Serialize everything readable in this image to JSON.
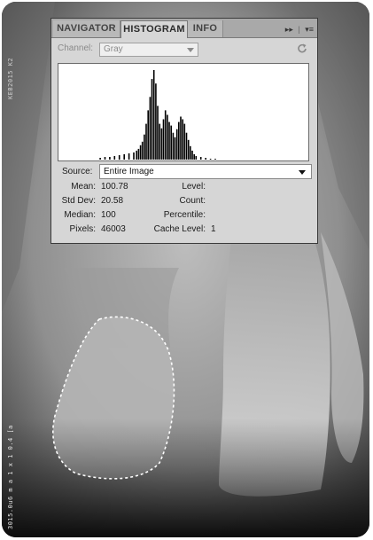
{
  "side_text": {
    "top": "KEB2015 K2",
    "bottom": "3015.0u6 m a 1 x 1 0.4 [a"
  },
  "panel": {
    "tabs": [
      {
        "label": "NAVIGATOR",
        "active": false
      },
      {
        "label": "HISTOGRAM",
        "active": true
      },
      {
        "label": "INFO",
        "active": false
      }
    ],
    "menu_glyphs": {
      "expand": "▸▸",
      "separator": "|",
      "menu": "▾≡"
    },
    "channel": {
      "label": "Channel:",
      "value": "Gray"
    },
    "source": {
      "label": "Source:",
      "value": "Entire Image"
    },
    "stats": {
      "mean": {
        "label": "Mean:",
        "value": "100.78"
      },
      "std_dev": {
        "label": "Std Dev:",
        "value": "20.58"
      },
      "median": {
        "label": "Median:",
        "value": "100"
      },
      "pixels": {
        "label": "Pixels:",
        "value": "46003"
      },
      "level": {
        "label": "Level:",
        "value": ""
      },
      "count": {
        "label": "Count:",
        "value": ""
      },
      "percentile": {
        "label": "Percentile:",
        "value": ""
      },
      "cache_level": {
        "label": "Cache Level:",
        "value": "1"
      }
    },
    "histogram": {
      "type": "bar",
      "levels": [
        40,
        45,
        50,
        55,
        60,
        65,
        70,
        75,
        78,
        80,
        82,
        84,
        86,
        88,
        90,
        92,
        94,
        96,
        98,
        100,
        102,
        104,
        106,
        108,
        110,
        112,
        114,
        116,
        118,
        120,
        122,
        124,
        126,
        128,
        130,
        132,
        134,
        136,
        138,
        140,
        145,
        150,
        155,
        160
      ],
      "values": [
        2,
        3,
        3,
        4,
        5,
        6,
        7,
        8,
        10,
        12,
        16,
        20,
        28,
        40,
        55,
        70,
        90,
        100,
        85,
        60,
        40,
        35,
        45,
        55,
        50,
        42,
        38,
        30,
        25,
        34,
        42,
        48,
        45,
        40,
        30,
        22,
        15,
        10,
        6,
        4,
        3,
        2,
        1,
        1
      ],
      "xlim": [
        0,
        255
      ]
    }
  },
  "colors": {
    "panel_bg": "#d6d6d6",
    "tabbar_bg": "#a9a9a9",
    "hist_bar": "#000000"
  }
}
